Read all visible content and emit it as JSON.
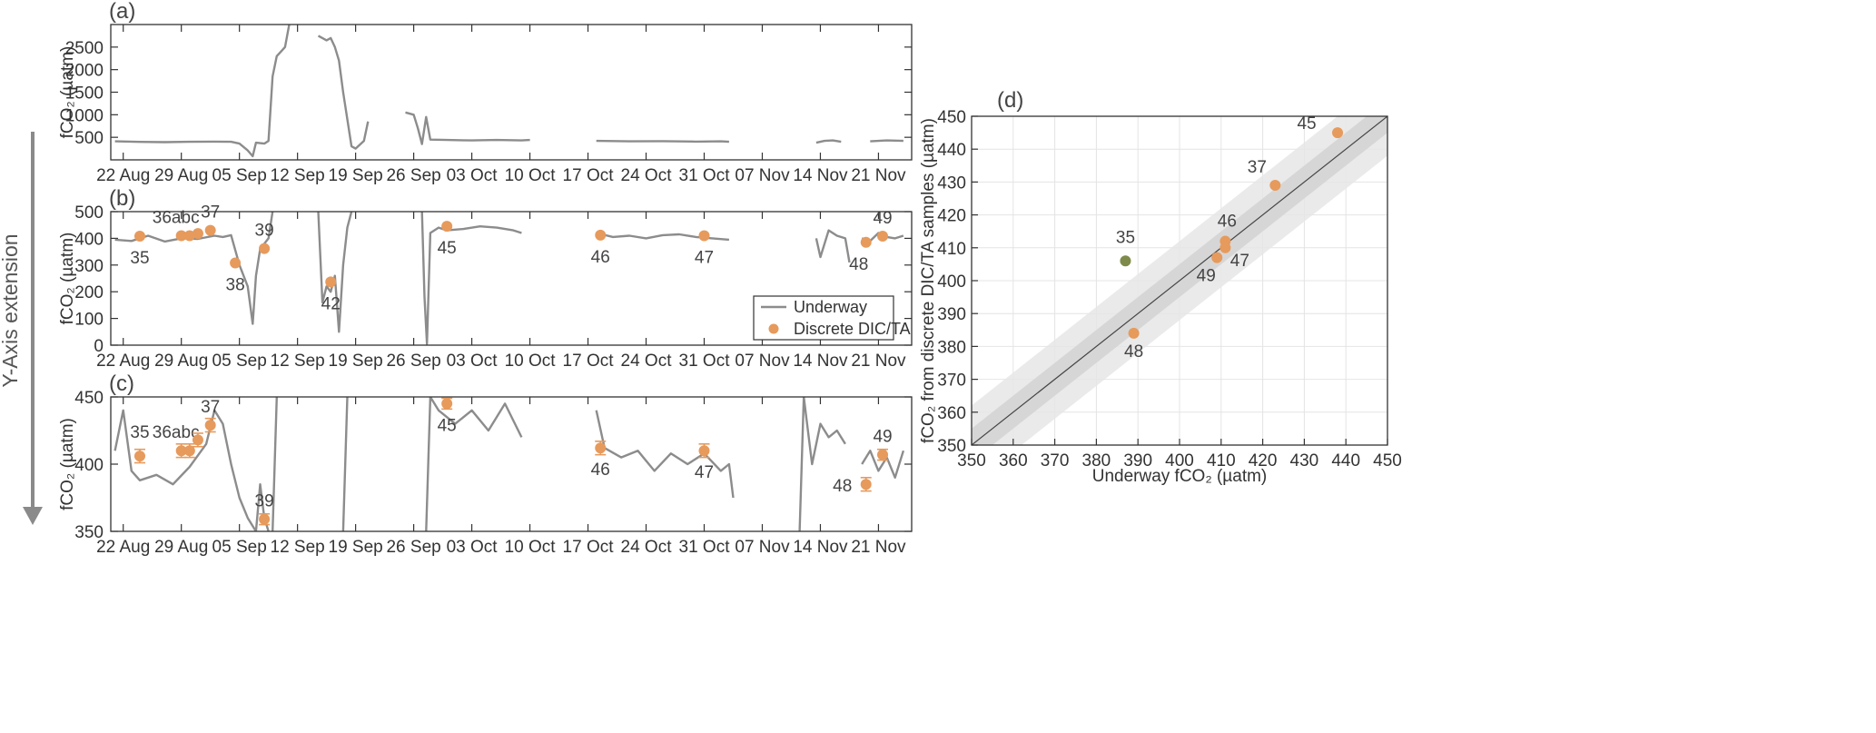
{
  "side_label": "Y-Axis extension",
  "x_ticks": [
    "22 Aug",
    "29 Aug",
    "05 Sep",
    "12 Sep",
    "19 Sep",
    "26 Sep",
    "03 Oct",
    "10 Oct",
    "17 Oct",
    "24 Oct",
    "31 Oct",
    "07 Nov",
    "14 Nov",
    "21 Nov"
  ],
  "colors": {
    "underway": "#8c8c8c",
    "discrete": "#e69a5c",
    "outlier": "#7e8a4a"
  },
  "chart_data": [
    {
      "panel": "(a)",
      "type": "line",
      "ylabel": "fCO₂ (µatm)",
      "ylim": [
        0,
        3000
      ],
      "yticks": [
        500,
        1000,
        1500,
        2000,
        2500
      ],
      "xlim_days": [
        -1.5,
        95
      ],
      "series": [
        {
          "name": "Underway",
          "points": [
            [
              -1,
              410
            ],
            [
              2,
              398
            ],
            [
              5,
              392
            ],
            [
              8,
              400
            ],
            [
              11,
              405
            ],
            [
              13,
              400
            ],
            [
              14,
              360
            ],
            [
              15,
              210
            ],
            [
              15.6,
              80
            ],
            [
              16,
              380
            ],
            [
              17,
              360
            ],
            [
              17.5,
              420
            ],
            [
              18,
              1850
            ],
            [
              18.5,
              2300
            ],
            [
              19,
              2400
            ],
            [
              19.5,
              2500
            ],
            [
              20,
              3000
            ],
            null,
            [
              23.5,
              2750
            ],
            [
              24,
              2700
            ],
            [
              24.5,
              2650
            ],
            [
              25,
              2700
            ],
            [
              25.5,
              2500
            ],
            [
              26,
              2200
            ],
            [
              26.5,
              1500
            ],
            [
              27,
              900
            ],
            [
              27.5,
              300
            ],
            [
              28,
              250
            ],
            [
              29,
              420
            ],
            [
              29.5,
              850
            ],
            null,
            [
              34,
              1050
            ],
            [
              35,
              1000
            ],
            [
              35.5,
              700
            ],
            [
              36,
              350
            ],
            [
              36.5,
              950
            ],
            [
              37,
              450
            ],
            [
              39,
              440
            ],
            [
              42,
              430
            ],
            [
              45,
              440
            ],
            [
              48,
              430
            ],
            [
              49,
              440
            ],
            null,
            [
              57,
              420
            ],
            [
              61,
              410
            ],
            [
              65,
              415
            ],
            [
              69,
              405
            ],
            [
              72,
              410
            ],
            [
              73,
              400
            ],
            null,
            [
              83.5,
              380
            ],
            [
              84.5,
              420
            ],
            [
              85.5,
              430
            ],
            [
              86.5,
              400
            ],
            null,
            [
              90,
              410
            ],
            [
              92,
              430
            ],
            [
              94,
              420
            ]
          ]
        }
      ]
    },
    {
      "panel": "(b)",
      "type": "line",
      "ylabel": "fCO₂ (µatm)",
      "ylim": [
        0,
        500
      ],
      "yticks": [
        0,
        100,
        200,
        300,
        400,
        500
      ],
      "xlim_days": [
        -1.5,
        95
      ],
      "legend": {
        "position": "bottom-right",
        "entries": [
          "Underway",
          "Discrete DIC/TA"
        ]
      },
      "series": [
        {
          "name": "Underway",
          "points": [
            [
              -1,
              395
            ],
            [
              1,
              390
            ],
            [
              3,
              410
            ],
            [
              5,
              388
            ],
            [
              7,
              400
            ],
            [
              9,
              398
            ],
            [
              11,
              410
            ],
            [
              12,
              405
            ],
            [
              13,
              412
            ],
            [
              14,
              300
            ],
            [
              15,
              220
            ],
            [
              15.6,
              80
            ],
            [
              16,
              260
            ],
            [
              16.5,
              360
            ],
            [
              17,
              380
            ],
            [
              17.5,
              400
            ],
            [
              18,
              500
            ],
            null,
            [
              23.5,
              500
            ],
            [
              24,
              160
            ],
            [
              24.5,
              220
            ],
            [
              25,
              200
            ],
            [
              25.5,
              260
            ],
            [
              26,
              50
            ],
            [
              26.5,
              300
            ],
            [
              27,
              440
            ],
            [
              27.5,
              500
            ],
            null,
            [
              36,
              500
            ],
            [
              36.3,
              180
            ],
            [
              36.6,
              5
            ],
            [
              37,
              420
            ],
            [
              38,
              440
            ],
            [
              39,
              430
            ],
            [
              41,
              435
            ],
            [
              43,
              445
            ],
            [
              45,
              440
            ],
            [
              47,
              430
            ],
            [
              48,
              420
            ],
            null,
            [
              57,
              420
            ],
            [
              59,
              405
            ],
            [
              61,
              410
            ],
            [
              63,
              400
            ],
            [
              65,
              412
            ],
            [
              67,
              415
            ],
            [
              69,
              405
            ],
            [
              71,
              400
            ],
            [
              73,
              395
            ],
            null,
            [
              83.5,
              400
            ],
            [
              84,
              330
            ],
            [
              85,
              430
            ],
            [
              86,
              410
            ],
            [
              87,
              400
            ],
            [
              87.5,
              310
            ],
            null,
            [
              89,
              400
            ],
            [
              90,
              390
            ],
            [
              91,
              420
            ],
            [
              92,
              405
            ],
            [
              93,
              400
            ],
            [
              94,
              410
            ]
          ]
        }
      ],
      "discrete": [
        {
          "day": 2.0,
          "value": 408,
          "label": "35"
        },
        {
          "day": 7.0,
          "value": 410,
          "label": "36abc"
        },
        {
          "day": 8.0,
          "value": 410,
          "label": ""
        },
        {
          "day": 9.0,
          "value": 418,
          "label": ""
        },
        {
          "day": 10.5,
          "value": 430,
          "label": "37"
        },
        {
          "day": 13.5,
          "value": 308,
          "label": "38"
        },
        {
          "day": 17.0,
          "value": 362,
          "label": "39"
        },
        {
          "day": 25.0,
          "value": 237,
          "label": "42"
        },
        {
          "day": 39.0,
          "value": 445,
          "label": "45"
        },
        {
          "day": 57.5,
          "value": 412,
          "label": "46"
        },
        {
          "day": 70.0,
          "value": 410,
          "label": "47"
        },
        {
          "day": 89.5,
          "value": 385,
          "label": "48"
        },
        {
          "day": 91.5,
          "value": 408,
          "label": "49"
        }
      ]
    },
    {
      "panel": "(c)",
      "type": "line",
      "ylabel": "fCO₂ (µatm)",
      "ylim": [
        350,
        450
      ],
      "yticks": [
        350,
        400,
        450
      ],
      "xlim_days": [
        -1.5,
        95
      ],
      "series": [
        {
          "name": "Underway",
          "points": [
            [
              -1,
              410
            ],
            [
              0,
              440
            ],
            [
              1,
              395
            ],
            [
              2,
              388
            ],
            [
              4,
              392
            ],
            [
              6,
              385
            ],
            [
              8,
              398
            ],
            [
              10,
              415
            ],
            [
              11,
              440
            ],
            [
              12,
              430
            ],
            [
              13,
              400
            ],
            [
              14,
              375
            ],
            [
              15,
              360
            ],
            [
              16,
              350
            ],
            [
              16.5,
              385
            ],
            [
              17,
              360
            ],
            [
              17.5,
              350
            ],
            null,
            [
              18,
              350
            ],
            [
              18.5,
              450
            ],
            null,
            [
              26.5,
              350
            ],
            [
              27,
              450
            ],
            null,
            [
              36.5,
              350
            ],
            [
              37,
              450
            ],
            [
              38,
              440
            ],
            [
              40,
              430
            ],
            [
              42,
              440
            ],
            [
              44,
              425
            ],
            [
              46,
              445
            ],
            [
              48,
              420
            ],
            null,
            [
              57,
              440
            ],
            [
              58,
              412
            ],
            [
              60,
              405
            ],
            [
              62,
              410
            ],
            [
              64,
              395
            ],
            [
              66,
              408
            ],
            [
              68,
              400
            ],
            [
              70,
              408
            ],
            [
              72,
              395
            ],
            [
              73,
              400
            ],
            [
              73.5,
              375
            ],
            null,
            [
              81.5,
              350
            ],
            [
              82,
              450
            ],
            [
              83,
              400
            ],
            [
              84,
              430
            ],
            [
              85,
              420
            ],
            [
              86,
              425
            ],
            [
              87,
              415
            ],
            null,
            [
              89,
              400
            ],
            [
              90,
              410
            ],
            [
              91,
              395
            ],
            [
              92,
              405
            ],
            [
              93,
              390
            ],
            [
              94,
              410
            ]
          ]
        }
      ],
      "discrete": [
        {
          "day": 2.0,
          "value": 406,
          "err": 5,
          "label": "35"
        },
        {
          "day": 7.0,
          "value": 410,
          "err": 5,
          "label": "36abc"
        },
        {
          "day": 8.0,
          "value": 410,
          "err": 5,
          "label": ""
        },
        {
          "day": 9.0,
          "value": 418,
          "err": 5,
          "label": ""
        },
        {
          "day": 10.5,
          "value": 429,
          "err": 5,
          "label": "37"
        },
        {
          "day": 17.0,
          "value": 359,
          "err": 4,
          "label": "39"
        },
        {
          "day": 39.0,
          "value": 445,
          "err": 4,
          "label": "45"
        },
        {
          "day": 57.5,
          "value": 412,
          "err": 5,
          "label": "46"
        },
        {
          "day": 70.0,
          "value": 410,
          "err": 5,
          "label": "47"
        },
        {
          "day": 89.5,
          "value": 385,
          "err": 5,
          "label": "48"
        },
        {
          "day": 91.5,
          "value": 407,
          "err": 4,
          "label": "49"
        }
      ]
    },
    {
      "panel": "(d)",
      "type": "scatter",
      "xlabel": "Underway fCO₂ (µatm)",
      "ylabel": "fCO₂ from discrete DIC/TA samples (µatm)",
      "xlim": [
        350,
        450
      ],
      "ylim": [
        350,
        450
      ],
      "ticks": [
        350,
        360,
        370,
        380,
        390,
        400,
        410,
        420,
        430,
        440,
        450
      ],
      "grid": true,
      "reference_line": "1:1",
      "bands": [
        5,
        12
      ],
      "points": [
        {
          "x": 387,
          "y": 406,
          "label": "35",
          "outlier": true
        },
        {
          "x": 423,
          "y": 429,
          "label": "37"
        },
        {
          "x": 438,
          "y": 445,
          "label": "45"
        },
        {
          "x": 411,
          "y": 412,
          "label": "46"
        },
        {
          "x": 411,
          "y": 410,
          "label": "47"
        },
        {
          "x": 409,
          "y": 407,
          "label": "49"
        },
        {
          "x": 389,
          "y": 384,
          "label": "48"
        }
      ]
    }
  ]
}
